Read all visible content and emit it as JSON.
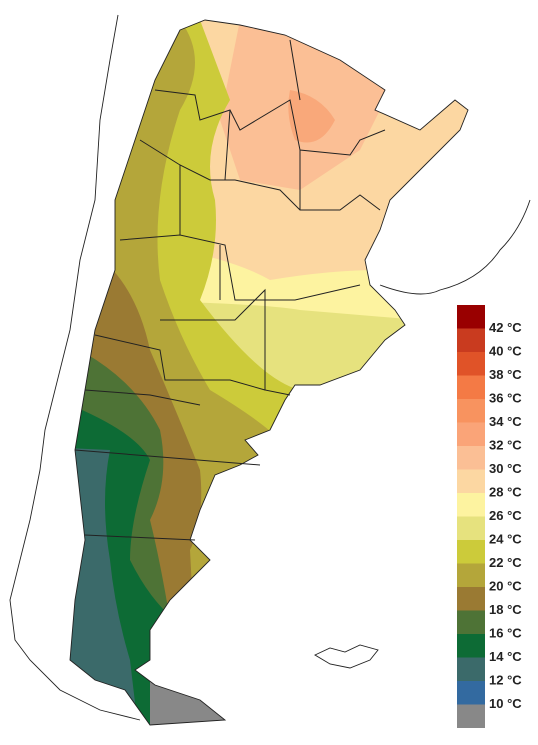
{
  "legend": {
    "top_color": "#990000",
    "items": [
      {
        "label": "42 °C",
        "color": "#c93b1f"
      },
      {
        "label": "40 °C",
        "color": "#e05328"
      },
      {
        "label": "38 °C",
        "color": "#f47a45"
      },
      {
        "label": "36 °C",
        "color": "#f8935f"
      },
      {
        "label": "34 °C",
        "color": "#faa478"
      },
      {
        "label": "32 °C",
        "color": "#fbbf95"
      },
      {
        "label": "30 °C",
        "color": "#fcd7a2"
      },
      {
        "label": "28 °C",
        "color": "#fdf3a0"
      },
      {
        "label": "26 °C",
        "color": "#e6e27e"
      },
      {
        "label": "24 °C",
        "color": "#cccb3a"
      },
      {
        "label": "22 °C",
        "color": "#b4a63a"
      },
      {
        "label": "20 °C",
        "color": "#9a7a33"
      },
      {
        "label": "18 °C",
        "color": "#4e7336"
      },
      {
        "label": "16 °C",
        "color": "#0d6b35"
      },
      {
        "label": "14 °C",
        "color": "#3b6a6a"
      },
      {
        "label": "12 °C",
        "color": "#336aa0"
      },
      {
        "label": "10 °C",
        "color": "#888888"
      }
    ]
  }
}
